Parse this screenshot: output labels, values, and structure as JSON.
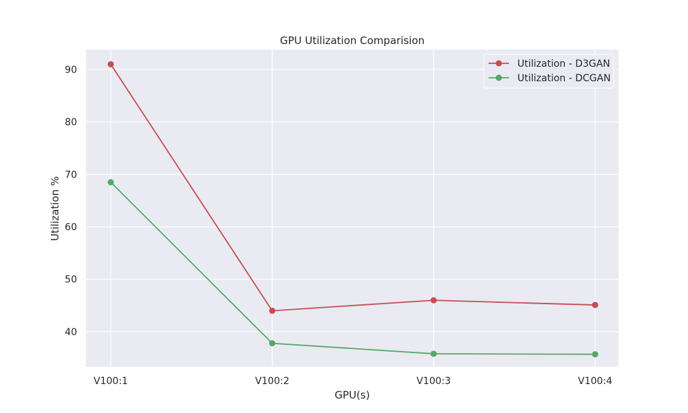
{
  "chart_data": {
    "type": "line",
    "title": "GPU Utilization Comparision",
    "xlabel": "GPU(s)",
    "ylabel": "Utilization %",
    "categories": [
      "V100:1",
      "V100:2",
      "V100:3",
      "V100:4"
    ],
    "ylim": [
      33.3,
      93.8
    ],
    "yticks": [
      40,
      50,
      60,
      70,
      80,
      90
    ],
    "grid": true,
    "legend_position": "top-right",
    "background": "#eaeaf2",
    "series": [
      {
        "name": "Utilization - D3GAN",
        "values": [
          91,
          44,
          46,
          45.1
        ],
        "color": "#c44e52",
        "marker": "circle"
      },
      {
        "name": "Utilization - DCGAN",
        "values": [
          68.5,
          37.8,
          35.8,
          35.7
        ],
        "color": "#55a868",
        "marker": "circle"
      }
    ]
  }
}
